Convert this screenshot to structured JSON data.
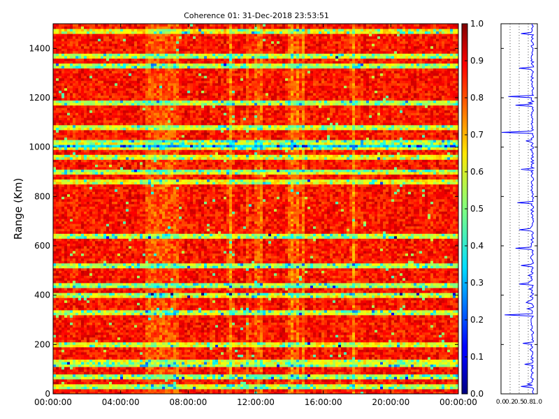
{
  "chart_data": [
    {
      "type": "heatmap",
      "title": "Coherence 01: 31-Dec-2018 23:53:51",
      "xlabel": "",
      "ylabel": "Range (Km)",
      "x_tick_labels": [
        "00:00:00",
        "04:00:00",
        "08:00:00",
        "12:00:00",
        "16:00:00",
        "20:00:00",
        "00:00:00"
      ],
      "y_ticks": [
        0,
        200,
        400,
        600,
        800,
        1000,
        1200,
        1400
      ],
      "ylim": [
        0,
        1500
      ],
      "value_range": [
        0.0,
        1.0
      ],
      "colormap": "jet",
      "colorbar_ticks": [
        "0.0",
        "0.1",
        "0.2",
        "0.3",
        "0.4",
        "0.5",
        "0.6",
        "0.7",
        "0.8",
        "0.9",
        "1.0"
      ],
      "grid": false,
      "note_low_coherence_ranges_km": [
        30,
        70,
        125,
        200,
        330,
        400,
        440,
        520,
        640,
        860,
        900,
        960,
        1000,
        1015,
        1080,
        1180,
        1330,
        1370,
        1470
      ],
      "note_bright_time_columns_hours": [
        10.5,
        11.7,
        12.2,
        14.1,
        14.6,
        17.8
      ]
    },
    {
      "type": "line",
      "title": "",
      "xlabel": "",
      "ylabel": "",
      "x_tick_labels": [
        "0.0",
        "0.2",
        "0.5",
        "0.8",
        "1.0"
      ],
      "xlim": [
        0,
        1
      ],
      "ylim": [
        0,
        1500
      ],
      "series_color": "#0000ff",
      "profile_dips": [
        {
          "range_km": 30,
          "value": 0.55
        },
        {
          "range_km": 120,
          "value": 0.65
        },
        {
          "range_km": 205,
          "value": 0.6
        },
        {
          "range_km": 320,
          "value": 0.1
        },
        {
          "range_km": 445,
          "value": 0.5
        },
        {
          "range_km": 520,
          "value": 0.55
        },
        {
          "range_km": 590,
          "value": 0.4
        },
        {
          "range_km": 665,
          "value": 0.5
        },
        {
          "range_km": 775,
          "value": 0.45
        },
        {
          "range_km": 910,
          "value": 0.55
        },
        {
          "range_km": 1060,
          "value": 0.02
        },
        {
          "range_km": 1170,
          "value": 0.4
        },
        {
          "range_km": 1205,
          "value": 0.2
        },
        {
          "range_km": 1320,
          "value": 0.5
        },
        {
          "range_km": 1460,
          "value": 0.55
        }
      ]
    }
  ]
}
